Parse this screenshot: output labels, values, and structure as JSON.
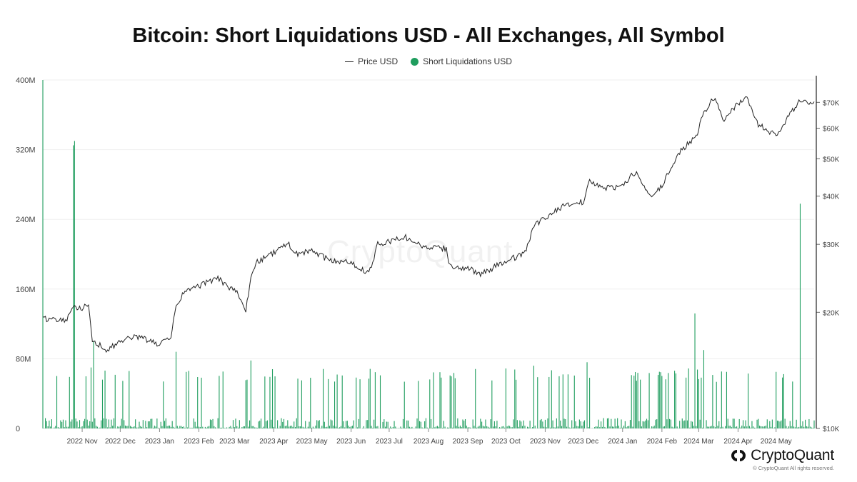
{
  "chart_data": {
    "type": "bar+line",
    "title": "Bitcoin: Short Liquidations USD - All Exchanges, All Symbol",
    "legend": [
      {
        "name": "Price USD",
        "kind": "line",
        "color": "#222222"
      },
      {
        "name": "Short Liquidations USD",
        "kind": "bar",
        "color": "#1f9d5e"
      }
    ],
    "legend_position": "top-center",
    "grid": true,
    "left_axis": {
      "label": "Short Liquidations USD",
      "range": [
        0,
        400000000
      ],
      "ticks": [
        "0",
        "80M",
        "160M",
        "240M",
        "320M",
        "400M"
      ],
      "tick_values": [
        0,
        80000000,
        160000000,
        240000000,
        320000000,
        400000000
      ]
    },
    "right_axis": {
      "label": "Price USD",
      "scale": "log",
      "range": [
        10000,
        80000
      ],
      "ticks": [
        "$10K",
        "$20K",
        "$30K",
        "$40K",
        "$50K",
        "$60K",
        "$70K"
      ],
      "tick_values": [
        10000,
        20000,
        30000,
        40000,
        50000,
        60000,
        70000
      ]
    },
    "x_axis": {
      "range": [
        "2022-10-01",
        "2024-05-31"
      ],
      "ticks": [
        "2022 Nov",
        "2022 Dec",
        "2023 Jan",
        "2023 Feb",
        "2023 Mar",
        "2023 Apr",
        "2023 May",
        "2023 Jun",
        "2023 Jul",
        "2023 Aug",
        "2023 Sep",
        "2023 Oct",
        "2023 Nov",
        "2023 Dec",
        "2024 Jan",
        "2024 Feb",
        "2024 Mar",
        "2024 Apr",
        "2024 May"
      ],
      "tick_dates": [
        "2022-11-01",
        "2022-12-01",
        "2023-01-01",
        "2023-02-01",
        "2023-03-01",
        "2023-04-01",
        "2023-05-01",
        "2023-06-01",
        "2023-07-01",
        "2023-08-01",
        "2023-09-01",
        "2023-10-01",
        "2023-11-01",
        "2023-12-01",
        "2024-01-01",
        "2024-02-01",
        "2024-03-01",
        "2024-04-01",
        "2024-05-01"
      ]
    },
    "price_series": {
      "name": "Price USD",
      "dates": [
        "2022-10-01",
        "2022-10-10",
        "2022-10-20",
        "2022-10-26",
        "2022-11-01",
        "2022-11-06",
        "2022-11-09",
        "2022-11-14",
        "2022-11-21",
        "2022-12-01",
        "2022-12-15",
        "2022-12-31",
        "2023-01-10",
        "2023-01-14",
        "2023-01-21",
        "2023-02-01",
        "2023-02-16",
        "2023-02-25",
        "2023-03-03",
        "2023-03-10",
        "2023-03-14",
        "2023-03-18",
        "2023-04-01",
        "2023-04-12",
        "2023-04-20",
        "2023-05-01",
        "2023-05-15",
        "2023-06-01",
        "2023-06-15",
        "2023-06-22",
        "2023-07-01",
        "2023-07-14",
        "2023-07-31",
        "2023-08-15",
        "2023-08-18",
        "2023-09-01",
        "2023-09-11",
        "2023-09-30",
        "2023-10-16",
        "2023-10-24",
        "2023-11-01",
        "2023-11-15",
        "2023-12-01",
        "2023-12-06",
        "2023-12-15",
        "2023-12-31",
        "2024-01-11",
        "2024-01-23",
        "2024-02-01",
        "2024-02-14",
        "2024-02-28",
        "2024-03-05",
        "2024-03-14",
        "2024-03-20",
        "2024-04-01",
        "2024-04-08",
        "2024-04-17",
        "2024-05-01",
        "2024-05-20",
        "2024-05-26"
      ],
      "values": [
        19300,
        19100,
        19100,
        20700,
        20500,
        21000,
        17000,
        16500,
        15900,
        16900,
        17300,
        16500,
        17200,
        20800,
        22700,
        23400,
        24500,
        23200,
        22400,
        20100,
        24700,
        26900,
        28500,
        30200,
        28200,
        28900,
        27200,
        27000,
        25100,
        30000,
        30500,
        31300,
        29300,
        29300,
        26300,
        26000,
        25100,
        27000,
        28500,
        33900,
        35000,
        37800,
        38700,
        43900,
        42000,
        42300,
        46200,
        39500,
        42500,
        51800,
        57000,
        66000,
        72500,
        62800,
        69700,
        71500,
        61300,
        57300,
        71400,
        69300
      ]
    },
    "liquidation_series": {
      "name": "Short Liquidations USD",
      "notable_spikes": [
        {
          "date": "2022-10-01",
          "value": 400000000
        },
        {
          "date": "2022-10-25",
          "value": 325000000
        },
        {
          "date": "2022-10-26",
          "value": 330000000
        },
        {
          "date": "2022-11-10",
          "value": 100000000
        },
        {
          "date": "2022-11-08",
          "value": 70000000
        },
        {
          "date": "2023-01-14",
          "value": 88000000
        },
        {
          "date": "2023-03-14",
          "value": 78000000
        },
        {
          "date": "2023-10-23",
          "value": 72000000
        },
        {
          "date": "2023-12-04",
          "value": 76000000
        },
        {
          "date": "2024-02-27",
          "value": 132000000
        },
        {
          "date": "2024-03-05",
          "value": 90000000
        },
        {
          "date": "2024-05-20",
          "value": 258000000
        }
      ],
      "typical_daily_range": [
        0,
        30000000
      ]
    }
  },
  "watermark": "CryptoQuant",
  "brand": {
    "name": "CryptoQuant",
    "copyright": "© CryptoQuant All rights reserved."
  }
}
